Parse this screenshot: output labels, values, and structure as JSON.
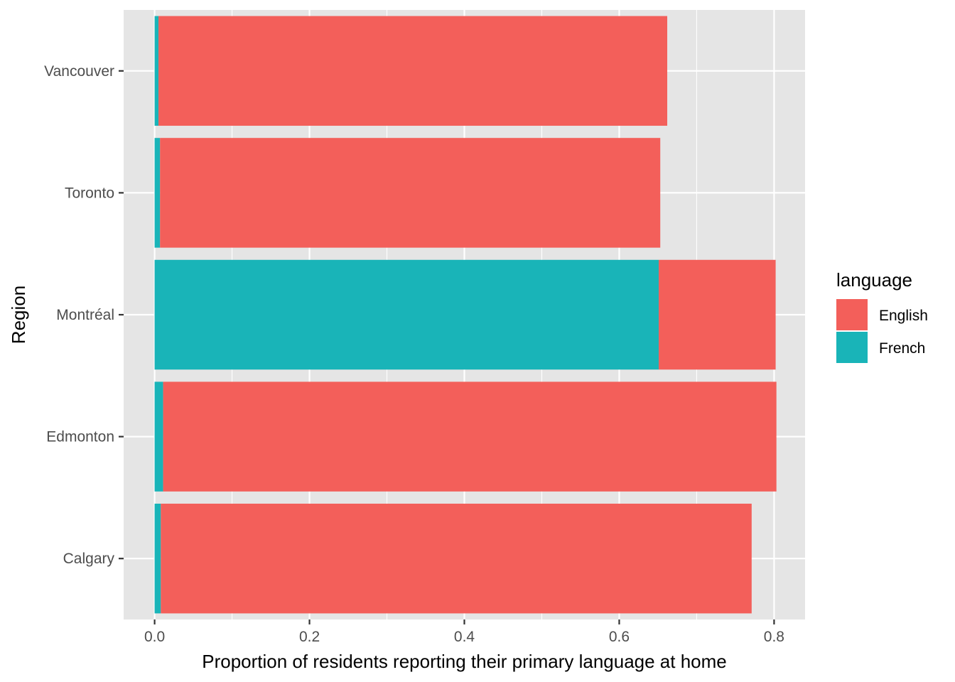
{
  "chart_data": {
    "type": "bar",
    "orientation": "horizontal",
    "stacked": true,
    "categories": [
      "Calgary",
      "Edmonton",
      "Montréal",
      "Toronto",
      "Vancouver"
    ],
    "series": [
      {
        "name": "French",
        "color": "#19b4b8",
        "values": [
          0.008,
          0.011,
          0.651,
          0.007,
          0.005
        ]
      },
      {
        "name": "English",
        "color": "#f35f5a",
        "values": [
          0.763,
          0.792,
          0.151,
          0.646,
          0.657
        ]
      }
    ],
    "stack_order": [
      "French",
      "English"
    ],
    "xlabel": "Proportion of residents reporting their primary language at home",
    "ylabel": "Region",
    "xlim": [
      -0.04,
      0.84
    ],
    "xticks": [
      0.0,
      0.2,
      0.4,
      0.6,
      0.8
    ],
    "xtick_labels": [
      "0.0",
      "0.2",
      "0.4",
      "0.6",
      "0.8"
    ],
    "grid": true,
    "panel_background": "#e5e5e5",
    "grid_color": "#ffffff",
    "legend": {
      "title": "language",
      "position": "right",
      "entries": [
        {
          "label": "English",
          "color": "#f35f5a"
        },
        {
          "label": "French",
          "color": "#19b4b8"
        }
      ]
    }
  }
}
